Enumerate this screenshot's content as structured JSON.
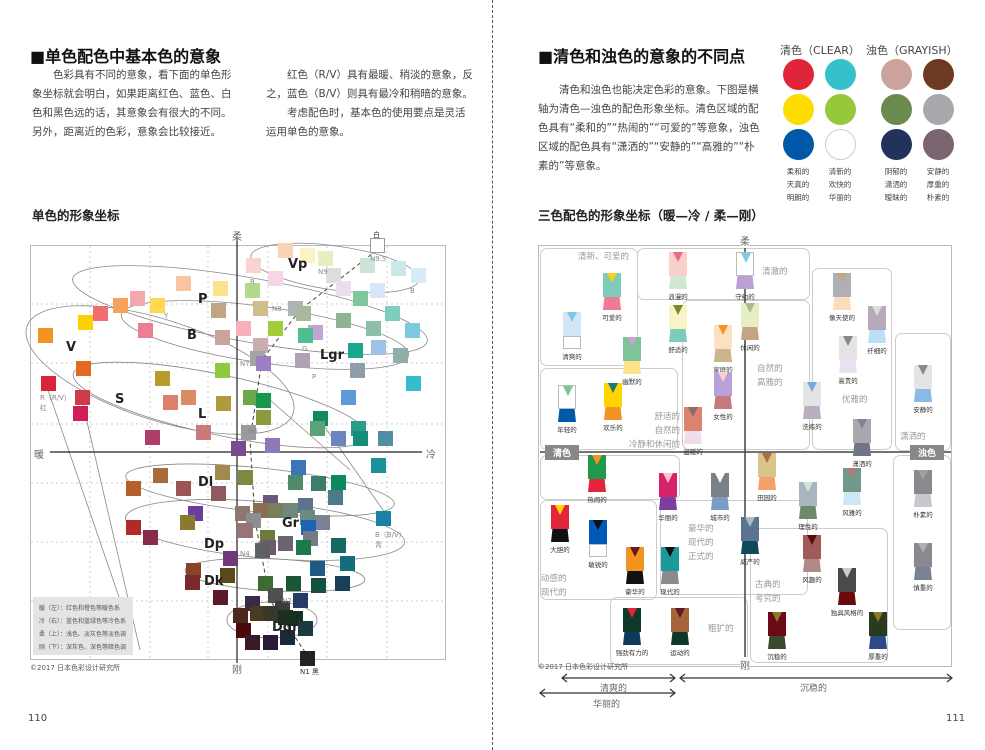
{
  "left": {
    "title": "■单色配色中基本色的意象",
    "para1": "色彩具有不同的意象，看下面的单色形象坐标就会明白，如果距离红色、蓝色、白色和黑色远的话，其意象会有很大的不同。另外，距离近的色彩，意象会比较接近。",
    "para2a": "红色（R/V）具有最暖、稍淡的意象，反之，蓝色（B/V）则具有最冷和稍暗的意象。",
    "para2b": "考虑配色时，基本色的使用要点是灵活运用单色的意象。",
    "subtitle": "单色的形象坐标",
    "axes": {
      "top": "柔",
      "bottom": "刚",
      "left": "暖",
      "right": "冷"
    },
    "regions": [
      "Vp",
      "P",
      "B",
      "V",
      "Lgr",
      "S",
      "L",
      "Dl",
      "Gr",
      "Dp",
      "Dk",
      "Dgr"
    ],
    "point_labels": [
      "白",
      "N9.5",
      "R（R/V）红",
      "B（B/V）青",
      "N1 黑",
      "N9",
      "N8",
      "N7",
      "N6",
      "N4",
      "N2",
      "R",
      "Y",
      "G",
      "B",
      "P"
    ],
    "legend": [
      "暖（左）：红色和橙色等暖色系",
      "冷（右）：蓝色和蓝绿色等冷色系",
      "柔（上）：浅色、淡灰色等淡色调",
      "刚（下）：深灰色、深色等暗色调"
    ],
    "copyright": "©2017 日本色彩设计研究所",
    "page_number": "110",
    "swatch_colors": [
      "#f9d3b6",
      "#fbf3c4",
      "#e6efbf",
      "#f9d3cf",
      "#f6d6e4",
      "#dddddd",
      "#cce5d6",
      "#cae9e6",
      "#d7ecf8",
      "#ecdef0",
      "#d5e6f6",
      "#7fc79a",
      "#f9c4a0",
      "#fbe38d",
      "#b4d98c",
      "#f4a8ac",
      "#f6a25c",
      "#fdd851",
      "#ef6f6e",
      "#c2a584",
      "#cfbe8a",
      "#aeb3b6",
      "#a9b99a",
      "#8fb492",
      "#7fcdbd",
      "#ffd000",
      "#f39324",
      "#ee7d8f",
      "#f7b1b8",
      "#a2cc3a",
      "#c2a5d6",
      "#4dbf8d",
      "#8cbfa9",
      "#7ec9de",
      "#c9a49e",
      "#c9aeae",
      "#17a98e",
      "#9fc2e8",
      "#8fafa9",
      "#a1a3a7",
      "#9a7fc3",
      "#aea2b6",
      "#8e9ea8",
      "#8ec93e",
      "#36bdcb",
      "#5e9ad6",
      "#e36a20",
      "#d9243a",
      "#b99b2e",
      "#cf3b4c",
      "#d98b63",
      "#e07e6e",
      "#b09a3c",
      "#6aa84a",
      "#17984a",
      "#8a9a3c",
      "#d11f56",
      "#c97a7a",
      "#ad3f68",
      "#9a9b9f",
      "#0f8b5e",
      "#5aa37a",
      "#6b86bb",
      "#2a9c8a",
      "#168c7a",
      "#4f8fa3",
      "#8e78b5",
      "#7a4c8e",
      "#3b76b9",
      "#19929a",
      "#a56b3d",
      "#a08a52",
      "#7b8a3f",
      "#4f8a6a",
      "#3e7c6d",
      "#0b8a5b",
      "#b8602a",
      "#9c5553",
      "#8e5a60",
      "#4d7a89",
      "#6b5a7a",
      "#8a6e52",
      "#7a7f5b",
      "#6f8877",
      "#5c7390",
      "#917670",
      "#8b8f94",
      "#6a8b82",
      "#7a8296",
      "#1e64b4",
      "#6a3da0",
      "#8a7a2e",
      "#1a80a5",
      "#b02a2a",
      "#8a2a4a",
      "#9a7474",
      "#6d7a3a",
      "#747a86",
      "#6a6470",
      "#6f5b6b",
      "#5f6066",
      "#1c7a4a",
      "#166a64",
      "#6e3a7a",
      "#1f5a86",
      "#146d7a",
      "#884328",
      "#5a4a1a",
      "#7a2a2a",
      "#3e6a34",
      "#1a5636",
      "#154f40",
      "#1a3f5a",
      "#4e5052",
      "#5a1a2a",
      "#273a64",
      "#3a2a4a",
      "#3f3b3a",
      "#4b2a1d",
      "#4a3a22",
      "#35382a",
      "#1c2f20",
      "#163022",
      "#1a3a44",
      "#4a0a0a",
      "#3a1a28",
      "#2a1a3a",
      "#1a2a3a",
      "#222222",
      "#ffffff"
    ]
  },
  "right": {
    "title": "■清色和浊色的意象的不同点",
    "para": "清色和浊色也能决定色彩的意象。下图是横轴为清色—浊色的配色形象坐标。清色区域的配色具有“柔和的”“热闹的”“可爱的”等意象，浊色区域的配色具有“潇洒的”“安静的”“高雅的”“朴素的”等意象。",
    "clear_header": "清色（CLEAR）",
    "grayish_header": "浊色（GRAYISH）",
    "clear_colors": [
      "#e0243a",
      "#36c0cc",
      "#ffdc00",
      "#96c83c",
      "#0058a8",
      "#ffffff"
    ],
    "grayish_colors": [
      "#cba39c",
      "#6b3a20",
      "#6b8a4e",
      "#a8a9ad",
      "#22325a",
      "#7a6470"
    ],
    "captions": [
      "柔和的\n天真的\n明朗的",
      "清新的\n欢快的\n华丽的",
      "阴郁的\n潇洒的\n暧昧的",
      "安静的\n厚重的\n朴素的"
    ],
    "subtitle": "三色配色的形象坐标（暖—冷 / 柔—刚）",
    "axes": {
      "top": "柔",
      "bottom": "刚",
      "left": "清色",
      "right": "浊色"
    },
    "region_texts": [
      "清新、可爱的",
      "清澈的",
      "舒适的\n自然的\n冷静和休闲的",
      "自然的\n高雅的",
      "优雅的",
      "潇洒的",
      "豪华的\n现代的\n正式的",
      "动感的\n现代的",
      "古典的\n考究的",
      "粗犷的"
    ],
    "garments": [
      {
        "label": "可爱的",
        "colors": [
          "#7dcbb8",
          "#f7d21a",
          "#f07a94"
        ]
      },
      {
        "label": "清爽的",
        "colors": [
          "#d3e6f6",
          "#7dc8e4",
          "#ffffff"
        ]
      },
      {
        "label": "浪漫的",
        "colors": [
          "#f9d0cc",
          "#ee6a8a",
          "#cfe8d4"
        ]
      },
      {
        "label": "守约的",
        "colors": [
          "#ffffff",
          "#7dcbe4",
          "#b9a0d6"
        ]
      },
      {
        "label": "舒适的",
        "colors": [
          "#f9f4c4",
          "#7a8a2a",
          "#7dcbb8"
        ]
      },
      {
        "label": "休闲的",
        "colors": [
          "#e6efc4",
          "#a8b898",
          "#c2a584"
        ]
      },
      {
        "label": "幽默的",
        "colors": [
          "#7dc596",
          "#c7a3d6",
          "#fce38a"
        ]
      },
      {
        "label": "家庭的",
        "colors": [
          "#fbe0c4",
          "#f39324",
          "#cbb68a"
        ]
      },
      {
        "label": "女性的",
        "colors": [
          "#b9a0d6",
          "#f9d0cc",
          "#c77a7e"
        ]
      },
      {
        "label": "年轻的",
        "colors": [
          "#ffffff",
          "#7dc596",
          "#0058a8"
        ]
      },
      {
        "label": "欢乐的",
        "colors": [
          "#ffd400",
          "#1a7a7a",
          "#f39324"
        ]
      },
      {
        "label": "温暖的",
        "colors": [
          "#de8270",
          "#8a6a6a",
          "#f0dcec"
        ]
      },
      {
        "label": "像天使的",
        "colors": [
          "#b0b0b4",
          "#c2a584",
          "#fddcbc"
        ]
      },
      {
        "label": "纤细的",
        "colors": [
          "#b7a9b9",
          "#dddddd",
          "#b9e0f6"
        ]
      },
      {
        "label": "高贵的",
        "colors": [
          "#e4e4e4",
          "#7a8a96",
          "#ecdff0"
        ]
      },
      {
        "label": "洗练的",
        "colors": [
          "#e4e4e4",
          "#7aa9e0",
          "#b9adc0"
        ]
      },
      {
        "label": "安静的",
        "colors": [
          "#e4e4e4",
          "#8a8a8a",
          "#8ab9e6"
        ]
      },
      {
        "label": "潇洒的",
        "colors": [
          "#a8a8ae",
          "#8a8090",
          "#6f7486"
        ]
      },
      {
        "label": "热闹的",
        "colors": [
          "#1f9a4a",
          "#f39324",
          "#e3243a"
        ]
      },
      {
        "label": "华丽的",
        "colors": [
          "#d6246a",
          "#f9c4d0",
          "#7a3ea0"
        ]
      },
      {
        "label": "城市的",
        "colors": [
          "#7a7f8a",
          "#ffffff",
          "#7a9ac8"
        ]
      },
      {
        "label": "田园的",
        "colors": [
          "#d9c48a",
          "#a8703a",
          "#f3a06a"
        ]
      },
      {
        "label": "理性的",
        "colors": [
          "#a8b4be",
          "#cfe8d4",
          "#6f8a6a"
        ]
      },
      {
        "label": "风雅的",
        "colors": [
          "#6f9a8a",
          "#b07a7a",
          "#cfe6f6"
        ]
      },
      {
        "label": "朴素的",
        "colors": [
          "#8a8a8e",
          "#a0a0a4",
          "#c8c8cc"
        ]
      },
      {
        "label": "大胆的",
        "colors": [
          "#e3243a",
          "#ffd400",
          "#111111"
        ]
      },
      {
        "label": "敏锐的",
        "colors": [
          "#0058b8",
          "#111111",
          "#ffffff"
        ]
      },
      {
        "label": "豪华的",
        "colors": [
          "#f3941e",
          "#6a1a1a",
          "#111111"
        ]
      },
      {
        "label": "现代的",
        "colors": [
          "#1a9a9a",
          "#111111",
          "#8a8a8a"
        ]
      },
      {
        "label": "威严的",
        "colors": [
          "#5a7390",
          "#aabbcc",
          "#0f4a5a"
        ]
      },
      {
        "label": "风趣的",
        "colors": [
          "#a05a5a",
          "#5a0a0a",
          "#b08a8a"
        ]
      },
      {
        "label": "独具风格的",
        "colors": [
          "#4a4a4a",
          "#cccccc",
          "#6a0a0a"
        ]
      },
      {
        "label": "慎重的",
        "colors": [
          "#8a8a8e",
          "#b0b0b0",
          "#7a8296"
        ]
      },
      {
        "label": "强劲有力的",
        "colors": [
          "#0f3a2a",
          "#e3243a",
          "#0f3a5a"
        ]
      },
      {
        "label": "运动的",
        "colors": [
          "#a5643a",
          "#5a1a2a",
          "#0f3a2a"
        ]
      },
      {
        "label": "沉稳的",
        "colors": [
          "#6a0a14",
          "#8a7a2a",
          "#3a4a2a"
        ]
      },
      {
        "label": "厚重的",
        "colors": [
          "#2a3a1a",
          "#8a7a2a",
          "#2a4a8a"
        ]
      }
    ],
    "bottom_arrows": {
      "clear_fresh": "清爽的",
      "gorgeous": "华丽的",
      "calm": "沉稳的"
    },
    "copyright": "©2017 日本色彩设计研究所",
    "page_number": "111"
  }
}
